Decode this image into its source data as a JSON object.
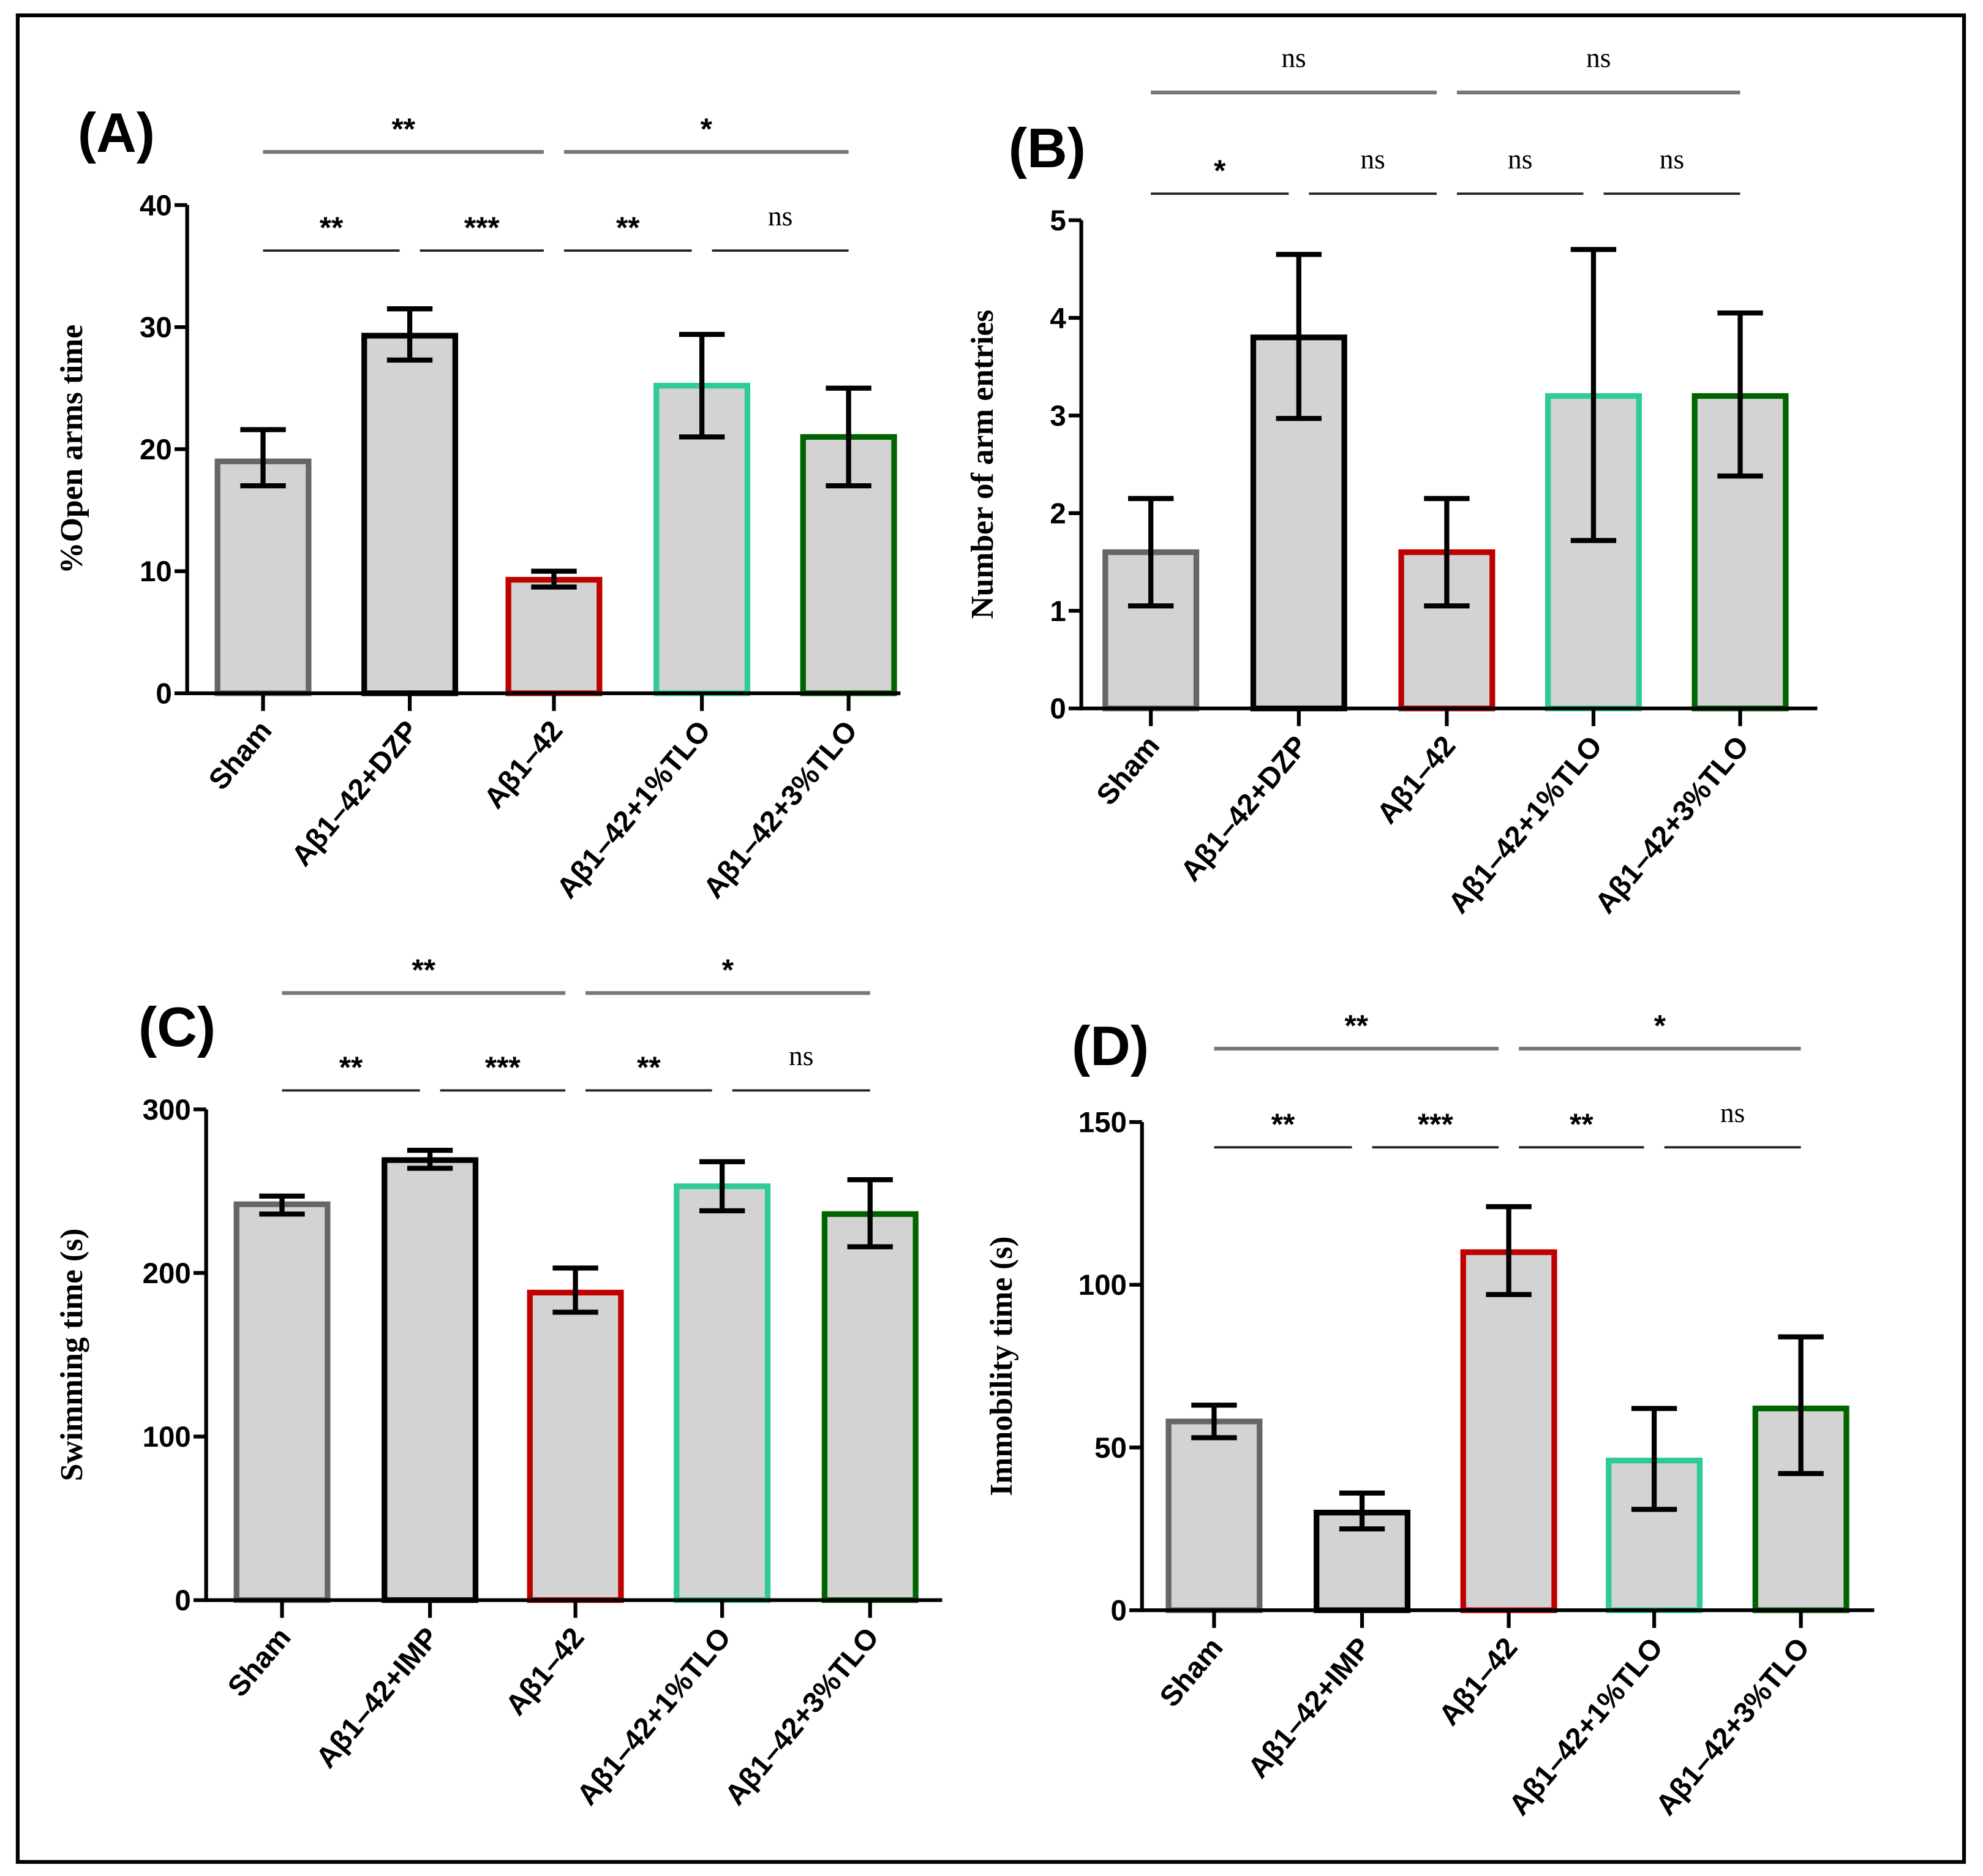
{
  "colors": {
    "fill": "#d3d3d3",
    "groups": [
      "#666666",
      "#000000",
      "#c00000",
      "#2ecc94",
      "#006400"
    ]
  },
  "chart_data": [
    {
      "panel": "(A)",
      "type": "bar",
      "ylabel": "%Open arms time",
      "ylim": [
        0,
        40
      ],
      "yticks": [
        0,
        10,
        20,
        30,
        40
      ],
      "categories": [
        "Sham",
        "Aβ1–42+DZP",
        "Aβ1–42",
        "Aβ1–42+1%TLO",
        "Aβ1–42+3%TLO"
      ],
      "values": [
        19,
        29.3,
        9.3,
        25.2,
        21
      ],
      "err_low": [
        17,
        27.3,
        8.7,
        21,
        17
      ],
      "err_high": [
        21.6,
        31.5,
        10,
        29.4,
        25
      ],
      "significance": [
        {
          "from": 0,
          "to": 2,
          "level": "top",
          "label": "**"
        },
        {
          "from": 2,
          "to": 4,
          "level": "top",
          "label": "*"
        },
        {
          "from": 0,
          "to": 1,
          "level": "low",
          "label": "**"
        },
        {
          "from": 1,
          "to": 2,
          "level": "low",
          "label": "***"
        },
        {
          "from": 2,
          "to": 3,
          "level": "low",
          "label": "**"
        },
        {
          "from": 3,
          "to": 4,
          "level": "low",
          "label": "ns"
        }
      ]
    },
    {
      "panel": "(B)",
      "type": "bar",
      "ylabel": "Number of arm entries",
      "ylim": [
        0,
        5
      ],
      "yticks": [
        0,
        1,
        2,
        3,
        4,
        5
      ],
      "categories": [
        "Sham",
        "Aβ1–42+DZP",
        "Aβ1–42",
        "Aβ1–42+1%TLO",
        "Aβ1–42+3%TLO"
      ],
      "values": [
        1.6,
        3.8,
        1.6,
        3.2,
        3.2
      ],
      "err_low": [
        1.05,
        2.97,
        1.05,
        1.72,
        2.38
      ],
      "err_high": [
        2.15,
        4.65,
        2.15,
        4.7,
        4.05
      ],
      "significance": [
        {
          "from": 0,
          "to": 2,
          "level": "top",
          "label": "ns"
        },
        {
          "from": 2,
          "to": 4,
          "level": "top",
          "label": "ns"
        },
        {
          "from": 0,
          "to": 1,
          "level": "low",
          "label": "*"
        },
        {
          "from": 1,
          "to": 2,
          "level": "low",
          "label": "ns"
        },
        {
          "from": 2,
          "to": 3,
          "level": "low",
          "label": "ns"
        },
        {
          "from": 3,
          "to": 4,
          "level": "low",
          "label": "ns"
        }
      ]
    },
    {
      "panel": "(C)",
      "type": "bar",
      "ylabel": "Swimming time (s)",
      "ylim": [
        0,
        300
      ],
      "yticks": [
        0,
        100,
        200,
        300
      ],
      "categories": [
        "Sham",
        "Aβ1–42+IMP",
        "Aβ1–42",
        "Aβ1–42+1%TLO",
        "Aβ1–42+3%TLO"
      ],
      "values": [
        242,
        269,
        188,
        253,
        236
      ],
      "err_low": [
        236,
        264,
        176,
        238,
        216
      ],
      "err_high": [
        247,
        275,
        203,
        268,
        257
      ],
      "significance": [
        {
          "from": 0,
          "to": 2,
          "level": "top",
          "label": "**"
        },
        {
          "from": 2,
          "to": 4,
          "level": "top",
          "label": "*"
        },
        {
          "from": 0,
          "to": 1,
          "level": "low",
          "label": "**"
        },
        {
          "from": 1,
          "to": 2,
          "level": "low",
          "label": "***"
        },
        {
          "from": 2,
          "to": 3,
          "level": "low",
          "label": "**"
        },
        {
          "from": 3,
          "to": 4,
          "level": "low",
          "label": "ns"
        }
      ]
    },
    {
      "panel": "(D)",
      "type": "bar",
      "ylabel": "Immobility time (s)",
      "ylim": [
        0,
        150
      ],
      "yticks": [
        0,
        50,
        100,
        150
      ],
      "categories": [
        "Sham",
        "Aβ1–42+IMP",
        "Aβ1–42",
        "Aβ1–42+1%TLO",
        "Aβ1–42+3%TLO"
      ],
      "values": [
        58,
        30,
        110,
        46,
        62
      ],
      "err_low": [
        53,
        25,
        97,
        31,
        42
      ],
      "err_high": [
        63,
        36,
        124,
        62,
        84
      ],
      "significance": [
        {
          "from": 0,
          "to": 2,
          "level": "top",
          "label": "**"
        },
        {
          "from": 2,
          "to": 4,
          "level": "top",
          "label": "*"
        },
        {
          "from": 0,
          "to": 1,
          "level": "low",
          "label": "**"
        },
        {
          "from": 1,
          "to": 2,
          "level": "low",
          "label": "***"
        },
        {
          "from": 2,
          "to": 3,
          "level": "low",
          "label": "**"
        },
        {
          "from": 3,
          "to": 4,
          "level": "low",
          "label": "ns"
        }
      ]
    }
  ]
}
